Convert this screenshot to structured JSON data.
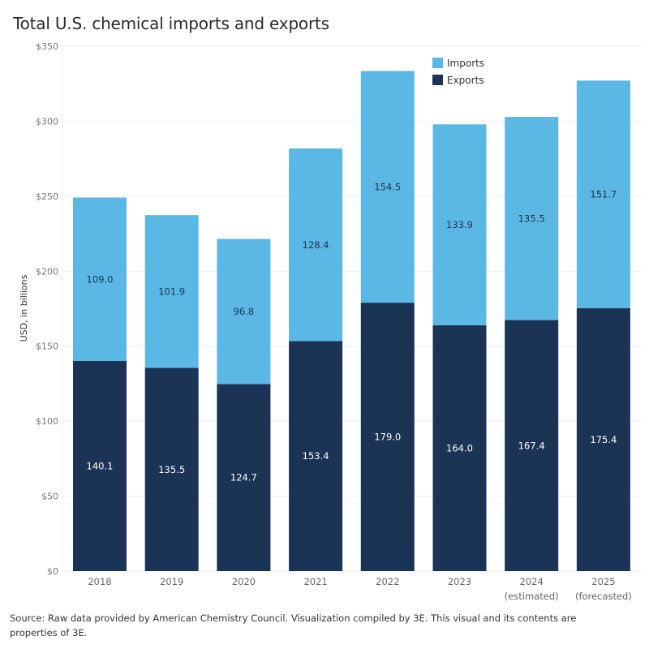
{
  "title": "Total U.S. chemical imports and exports",
  "source": "Source: Raw data provided by American Chemistry Council. Visualization compiled by 3E. This visual and its contents are properties of 3E.",
  "chart_data": {
    "type": "bar",
    "stacked": true,
    "title": "Total U.S. chemical imports and exports",
    "xlabel": "",
    "ylabel": "USD, in billions",
    "ylim": [
      0,
      350
    ],
    "yticks": [
      0,
      50,
      100,
      150,
      200,
      250,
      300,
      350
    ],
    "ytick_labels": [
      "$0",
      "$50",
      "$100",
      "$150",
      "$200",
      "$250",
      "$300",
      "$350"
    ],
    "grid": true,
    "legend_position": "top-center",
    "categories": [
      [
        "2018"
      ],
      [
        "2019"
      ],
      [
        "2020"
      ],
      [
        "2021"
      ],
      [
        "2022"
      ],
      [
        "2023"
      ],
      [
        "2024",
        "(estimated)"
      ],
      [
        "2025",
        "(forecasted)"
      ]
    ],
    "series": [
      {
        "name": "Exports",
        "color": "#1B3354",
        "label_color": "#ffffff",
        "values": [
          140.1,
          135.5,
          124.7,
          153.4,
          179.0,
          164.0,
          167.4,
          175.4
        ],
        "labels": [
          "140.1",
          "135.5",
          "124.7",
          "153.4",
          "179.0",
          "164.0",
          "167.4",
          "175.4"
        ]
      },
      {
        "name": "Imports",
        "color": "#5BB8E4",
        "label_color": "#1B3354",
        "values": [
          109.0,
          101.9,
          96.8,
          128.4,
          154.5,
          133.9,
          135.5,
          151.7
        ],
        "labels": [
          "109.0",
          "101.9",
          "96.8",
          "128.4",
          "154.5",
          "133.9",
          "135.5",
          "151.7"
        ]
      }
    ],
    "legend": [
      {
        "name": "Imports",
        "color": "#5BB8E4"
      },
      {
        "name": "Exports",
        "color": "#1B3354"
      }
    ]
  }
}
